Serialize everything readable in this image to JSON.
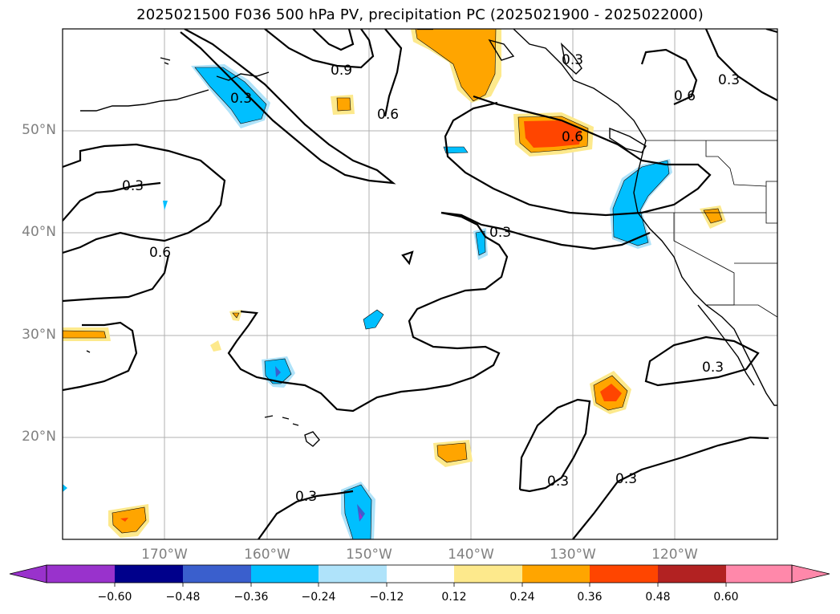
{
  "title": "2025021500 F036 500 hPa PV, precipitation PC (2025021900 - 2025022000)",
  "lon_labels": [
    "170°W",
    "160°W",
    "150°W",
    "140°W",
    "130°W",
    "120°W"
  ],
  "lat_labels": [
    "50°N",
    "40°N",
    "30°N",
    "20°N"
  ],
  "contour_labels": [
    "0.9",
    "0.6",
    "0.3",
    "0.6",
    "0.3",
    "0.6",
    "0.3",
    "0.6",
    "0.3",
    "0.3",
    "0.3",
    "0.3",
    "0.3",
    "0.3"
  ],
  "colorbar": {
    "ticks": [
      "−0.60",
      "−0.48",
      "−0.36",
      "−0.24",
      "−0.12",
      "0.12",
      "0.24",
      "0.36",
      "0.48",
      "0.60"
    ],
    "colors": [
      "#9932cc",
      "#00008b",
      "#3a5fcd",
      "#00bfff",
      "#afe3fa",
      "#ffffff",
      "#fde98c",
      "#ffa500",
      "#ff4500",
      "#b22222",
      "#ff88aa"
    ]
  },
  "colors": {
    "land_outline": "#000000",
    "grid": "#b0b0b0",
    "contour": "#000000"
  }
}
